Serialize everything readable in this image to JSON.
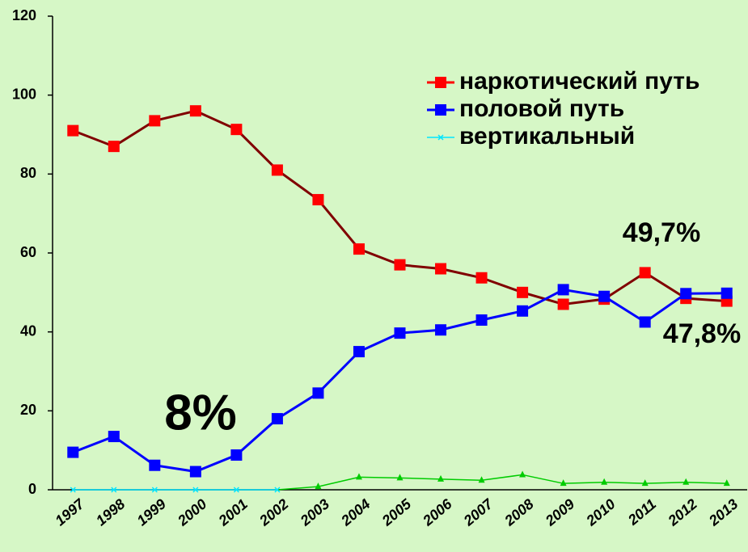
{
  "chart_data": {
    "type": "line",
    "categories": [
      "1997",
      "1998",
      "1999",
      "2000",
      "2001",
      "2002",
      "2003",
      "2004",
      "2005",
      "2006",
      "2007",
      "2008",
      "2009",
      "2010",
      "2011",
      "2012",
      "2013"
    ],
    "series": [
      {
        "name": "наркотический путь",
        "color": "#800000",
        "marker_color": "#ff0000",
        "marker": "square",
        "values": [
          91,
          87,
          93.5,
          96,
          91.3,
          81,
          73.5,
          61,
          57,
          56,
          53.7,
          50,
          47,
          48.3,
          55,
          48.5,
          47.8
        ]
      },
      {
        "name": "половой путь",
        "color": "#0000ff",
        "marker_color": "#0000ff",
        "marker": "square",
        "values": [
          9.5,
          13.5,
          6.2,
          4.6,
          8.8,
          18,
          24.5,
          35,
          39.7,
          40.5,
          43,
          45.3,
          50.7,
          49,
          42.5,
          49.7,
          49.8
        ]
      },
      {
        "name": "вертикальный",
        "color": "#00e5ff",
        "marker_color": "#00e5ff",
        "marker": "x",
        "point_colors": [
          "#00e5ff",
          "#00e5ff",
          "#00e5ff",
          "#00e5ff",
          "#00e5ff",
          "#00e5ff",
          "#00cc00",
          "#00cc00",
          "#00cc00",
          "#00cc00",
          "#00cc00",
          "#00cc00",
          "#00cc00",
          "#00cc00",
          "#00cc00",
          "#00cc00",
          "#00cc00"
        ],
        "point_markers": [
          "x",
          "x",
          "x",
          "x",
          "x",
          "x",
          "triangle",
          "triangle",
          "triangle",
          "triangle",
          "triangle",
          "triangle",
          "triangle",
          "triangle",
          "triangle",
          "triangle",
          "triangle"
        ],
        "values": [
          0,
          0,
          0,
          0,
          0,
          0,
          0.8,
          3.2,
          3,
          2.7,
          2.4,
          3.8,
          1.6,
          1.9,
          1.6,
          1.9,
          1.6
        ]
      }
    ],
    "ylim": [
      0,
      120
    ],
    "yticks": [
      0,
      20,
      40,
      60,
      80,
      100,
      120
    ],
    "grid": false,
    "legend": "upper right",
    "annotations": [
      "49,7%",
      "47,8%",
      "8%"
    ]
  }
}
